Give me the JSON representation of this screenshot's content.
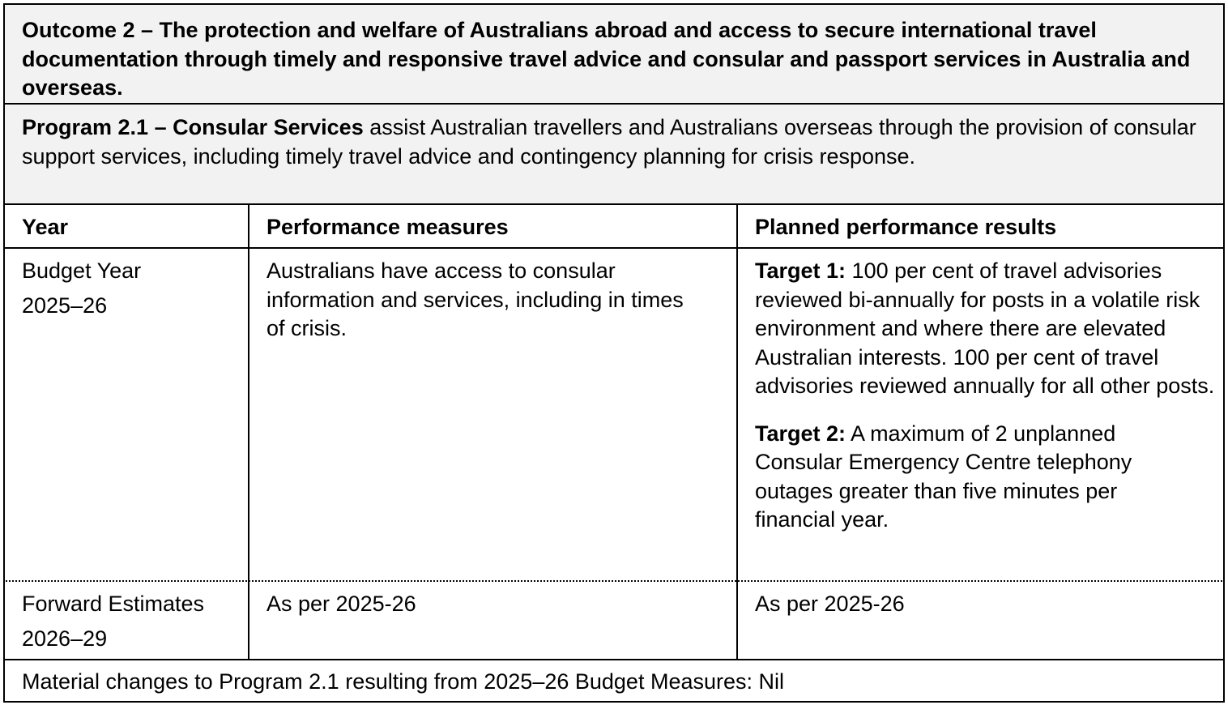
{
  "outcome": "Outcome 2 – The protection and welfare of Australians abroad and access to secure international travel documentation through timely and responsive travel advice and consular and passport services in Australia and overseas.",
  "program": {
    "name": "Program 2.1 – Consular Services",
    "description": "assist Australian travellers and Australians overseas through the provision of consular support services, including timely travel advice and contingency planning for crisis response."
  },
  "table": {
    "headers": [
      "Year",
      "Performance measures",
      "Planned performance results"
    ],
    "rows": [
      {
        "year": {
          "label": "Budget Year",
          "period": "2025–26"
        },
        "measure": "Australians have access to consular information and services, including in times of crisis.",
        "results": [
          {
            "label": "Target 1:",
            "text": "100 per cent of travel advisories reviewed bi-annually for posts in a volatile risk environment and where there are elevated Australian interests. 100 per cent of travel advisories reviewed annually for all other posts."
          },
          {
            "label": "Target 2:",
            "text": "A maximum of 2 unplanned Consular Emergency Centre telephony outages greater than five minutes per financial year."
          }
        ]
      },
      {
        "year": {
          "label": "Forward Estimates",
          "period": "2026–29"
        },
        "measure": "As per 2025-26",
        "results": "As per 2025-26"
      }
    ]
  },
  "footer": "Material changes to Program 2.1 resulting from 2025–26 Budget Measures: Nil"
}
